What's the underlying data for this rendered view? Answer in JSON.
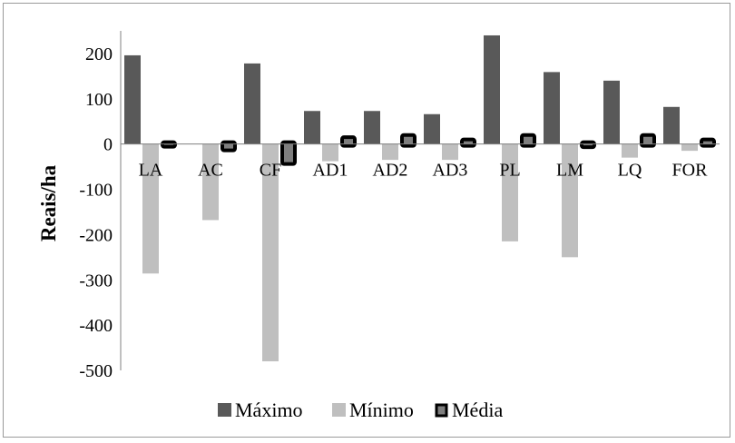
{
  "chart_data": {
    "type": "bar",
    "title": "",
    "xlabel": "",
    "ylabel": "Reais/ha",
    "ylim": [
      -500,
      250
    ],
    "yticks": [
      200,
      100,
      0,
      -100,
      -200,
      -300,
      -400,
      -500
    ],
    "grid": false,
    "legend_position": "bottom",
    "categories": [
      "LA",
      "AC",
      "CF",
      "AD1",
      "AD2",
      "AD3",
      "PL",
      "LM",
      "LQ",
      "FOR"
    ],
    "series": [
      {
        "name": "Máximo",
        "color": "#595959",
        "style": "plain",
        "values": [
          196,
          0,
          178,
          73,
          73,
          66,
          240,
          159,
          140,
          82
        ]
      },
      {
        "name": "Mínimo",
        "color": "#bfbfbf",
        "style": "plain",
        "values": [
          -286,
          -168,
          -480,
          -38,
          -35,
          -35,
          -215,
          -250,
          -30,
          -15
        ]
      },
      {
        "name": "Média",
        "color": "#7f7f7f",
        "style": "outlined",
        "values": [
          -2,
          -10,
          -40,
          11,
          16,
          6,
          16,
          -3,
          16,
          6
        ]
      }
    ]
  }
}
